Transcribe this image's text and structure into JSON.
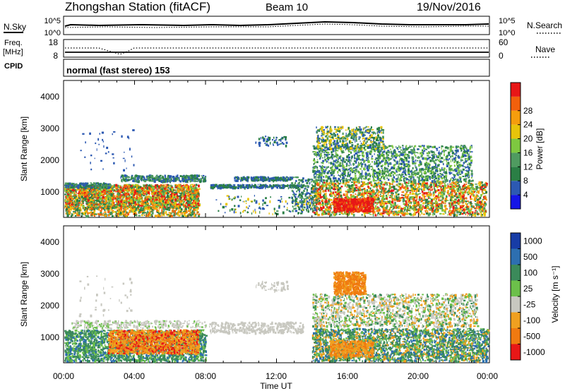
{
  "header": {
    "station": "Zhongshan Station (fitACF)",
    "beam": "Beam 10",
    "date": "19/Nov/2016"
  },
  "mode_text": "normal (fast stereo) 153",
  "strip_labels": {
    "nsky": "N.Sky",
    "nsky_top": "10^5",
    "nsky_bottom": "10^0",
    "nsearch": "N.Search",
    "nsearch_top": "10^5",
    "nsearch_bottom": "10^0",
    "freq_line1": "Freq.",
    "freq_line2": "[MHz]",
    "freq_top": "18",
    "freq_bottom": "8",
    "nave": "Nave",
    "nave_top": "60",
    "nave_bottom": "0",
    "cpid": "CPID"
  },
  "power_colorbar": {
    "label": "Power [dB]",
    "ticks": [
      "4",
      "8",
      "12",
      "16",
      "20",
      "24",
      "28"
    ],
    "colors": [
      "#1515e6",
      "#2c59b2",
      "#2a7f45",
      "#4f9b60",
      "#7ec840",
      "#e8c40a",
      "#f59d0d",
      "#f2600c",
      "#e81717"
    ]
  },
  "velocity_colorbar": {
    "label": "Velocity [m s⁻¹]",
    "ticks": [
      "1000",
      "500",
      "100",
      "25",
      "-25",
      "-100",
      "-500",
      "-1000"
    ],
    "colors": [
      "#173ca6",
      "#2d6fb0",
      "#3b8a5a",
      "#6cc04a",
      "#c8c8c0",
      "#f0a020",
      "#f07a10",
      "#e81717"
    ]
  },
  "chart_data": [
    {
      "type": "heatmap",
      "panel": "power",
      "xlabel": "",
      "ylabel": "Slant Range [km]",
      "ytick_labels": [
        "1000",
        "2000",
        "3000",
        "4000"
      ],
      "ylim": [
        180,
        4550
      ],
      "xlim_hours": [
        0,
        24
      ],
      "grid": false,
      "colorbar": "Power [dB]"
    },
    {
      "type": "heatmap",
      "panel": "velocity",
      "xlabel": "Time UT",
      "ylabel": "Slant Range [km]",
      "ytick_labels": [
        "1000",
        "2000",
        "3000",
        "4000"
      ],
      "ylim": [
        180,
        4550
      ],
      "xlim_hours": [
        0,
        24
      ],
      "xtick_labels": [
        "00:00",
        "04:00",
        "08:00",
        "12:00",
        "16:00",
        "20:00",
        "00:00"
      ],
      "grid": false,
      "colorbar": "Velocity [m s⁻¹]"
    }
  ]
}
